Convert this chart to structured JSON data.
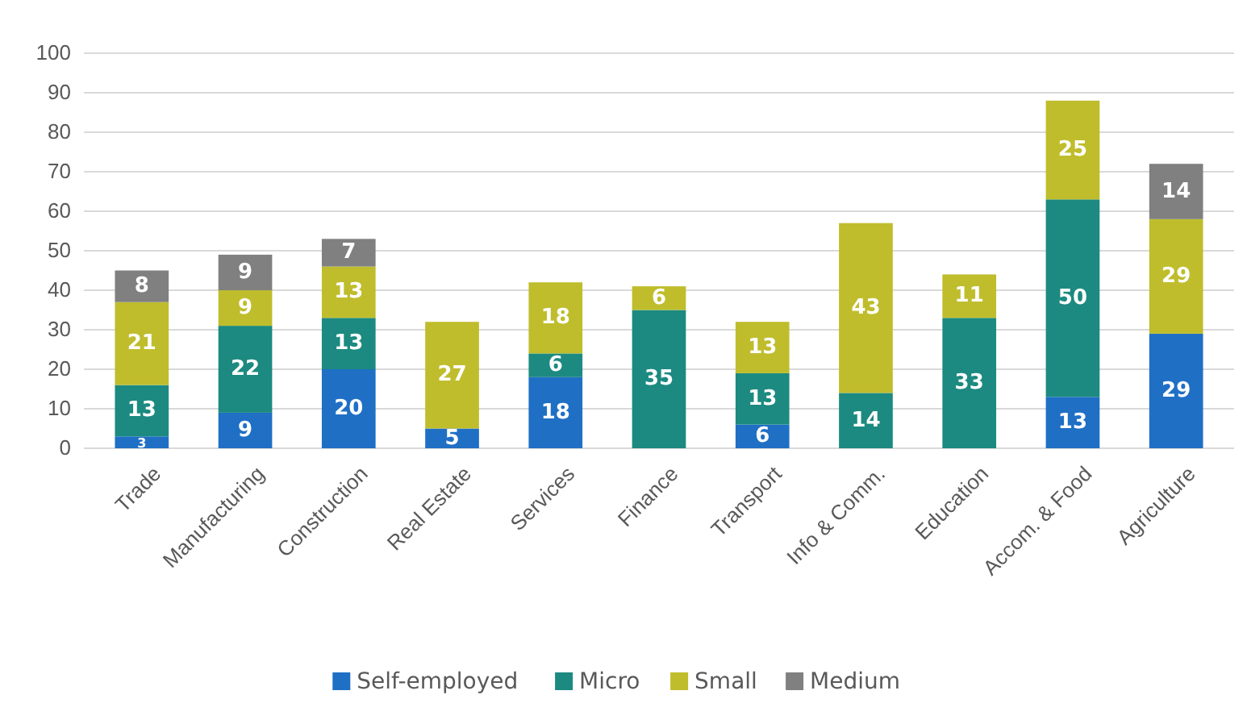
{
  "chart_data": {
    "type": "bar",
    "stacked": true,
    "categories": [
      "Trade",
      "Manufacturing",
      "Construction",
      "Real Estate",
      "Services",
      "Finance",
      "Transport",
      "Info & Comm.",
      "Education",
      "Accom. & Food",
      "Agriculture"
    ],
    "series": [
      {
        "name": "Self-employed",
        "color": "#1f6fc5",
        "values": [
          3,
          9,
          20,
          5,
          18,
          null,
          6,
          null,
          null,
          13,
          29
        ]
      },
      {
        "name": "Micro",
        "color": "#1c8a80",
        "values": [
          13,
          22,
          13,
          null,
          6,
          35,
          13,
          14,
          33,
          50,
          null
        ]
      },
      {
        "name": "Small",
        "color": "#bfbd2c",
        "values": [
          21,
          9,
          13,
          27,
          18,
          6,
          13,
          43,
          11,
          25,
          29
        ]
      },
      {
        "name": "Medium",
        "color": "#808080",
        "values": [
          8,
          9,
          7,
          null,
          null,
          null,
          null,
          null,
          null,
          null,
          14
        ]
      }
    ],
    "ylim": [
      0,
      100
    ],
    "yticks": [
      0,
      10,
      20,
      30,
      40,
      50,
      60,
      70,
      80,
      90,
      100
    ],
    "grid": "y",
    "legend": "bottom",
    "data_labels": true
  }
}
